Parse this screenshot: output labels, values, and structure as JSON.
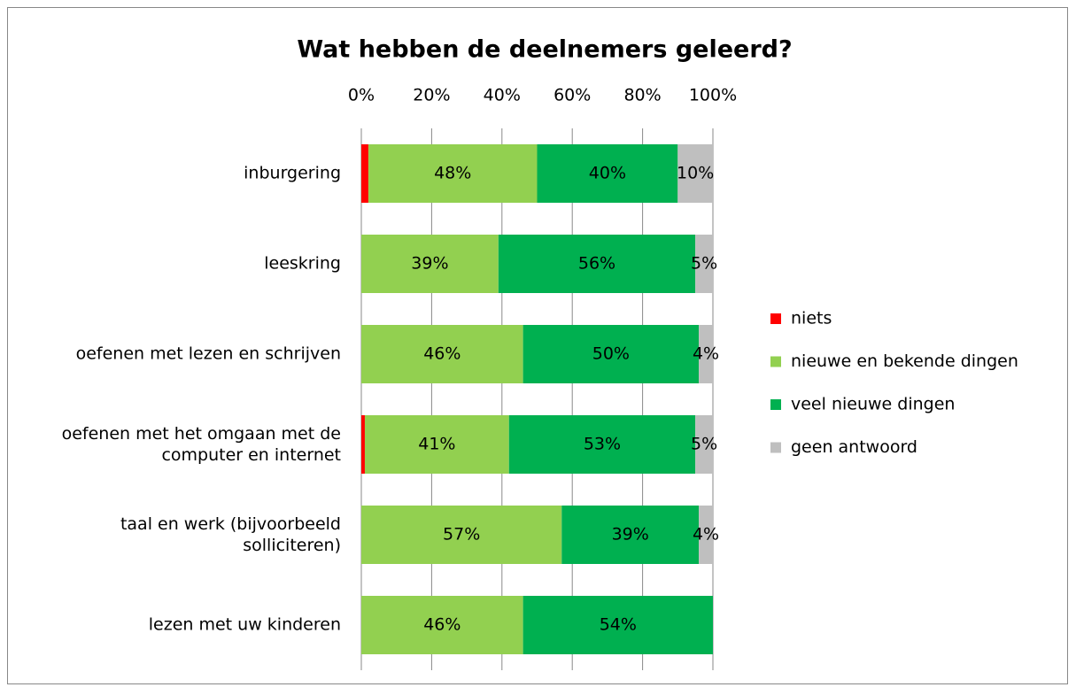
{
  "chart_data": {
    "type": "stacked-bar-horizontal",
    "title": "Wat hebben de deelnemers geleerd?",
    "categories": [
      "inburgering",
      "leeskring",
      "oefenen met lezen en schrijven",
      "oefenen met het omgaan met de\ncomputer en internet",
      "taal en werk (bijvoorbeeld\nsolliciteren)",
      "lezen met uw kinderen"
    ],
    "series": [
      {
        "name": "niets",
        "color": "#ff0000",
        "values": [
          2,
          0,
          0,
          1,
          0,
          0
        ]
      },
      {
        "name": "nieuwe en bekende dingen",
        "color": "#92d050",
        "values": [
          48,
          39,
          46,
          41,
          57,
          46
        ],
        "value_labels": [
          "48%",
          "39%",
          "46%",
          "41%",
          "57%",
          "46%"
        ]
      },
      {
        "name": "veel nieuwe dingen",
        "color": "#00b050",
        "values": [
          40,
          56,
          50,
          53,
          39,
          54
        ],
        "value_labels": [
          "40%",
          "56%",
          "50%",
          "53%",
          "39%",
          "54%"
        ]
      },
      {
        "name": "geen antwoord",
        "color": "#bfbfbf",
        "values": [
          10,
          5,
          4,
          5,
          4,
          0
        ],
        "value_labels": [
          "10%",
          "5%",
          "4%",
          "5%",
          "4%",
          null
        ]
      }
    ],
    "xlim": [
      0,
      100
    ],
    "xticks": [
      {
        "value": 0,
        "label": "0%"
      },
      {
        "value": 20,
        "label": "20%"
      },
      {
        "value": 40,
        "label": "40%"
      },
      {
        "value": 60,
        "label": "60%"
      },
      {
        "value": 80,
        "label": "80%"
      },
      {
        "value": 100,
        "label": "100%"
      }
    ],
    "grid": true,
    "legend": "right"
  }
}
